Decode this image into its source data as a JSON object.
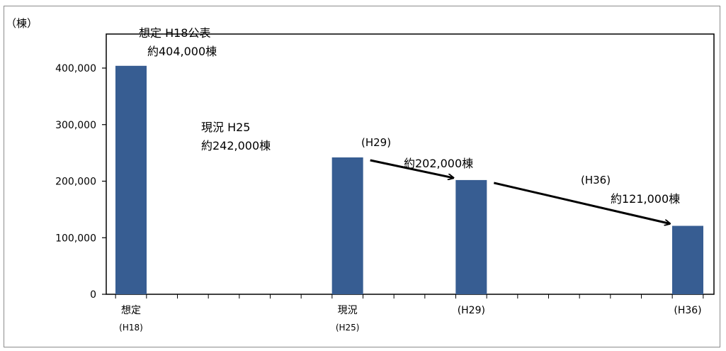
{
  "chart_data": {
    "type": "bar",
    "ylabel": "（棟）",
    "ylim": [
      0,
      400000
    ],
    "yticks": [
      0,
      100000,
      200000,
      300000,
      400000
    ],
    "ytick_labels": [
      "0",
      "100,000",
      "200,000",
      "300,000",
      "400,000"
    ],
    "x_year_range": [
      "H18",
      "H36"
    ],
    "categories": [
      {
        "top": "想定",
        "bottom": "(H18)",
        "year": 18
      },
      {
        "top": "現況",
        "bottom": "(H25)",
        "year": 25
      },
      {
        "top": "(H29)",
        "bottom": "",
        "year": 29
      },
      {
        "top": "(H36)",
        "bottom": "",
        "year": 36
      }
    ],
    "values": [
      404000,
      242000,
      202000,
      121000
    ],
    "bar_color": "#375D92",
    "grid": false,
    "annotations": [
      {
        "lines": [
          "想定  H18公表",
          "約404,000棟"
        ]
      },
      {
        "lines": [
          "現況  H25",
          "約242,000棟"
        ]
      },
      {
        "lines": [
          "(H29)"
        ]
      },
      {
        "lines": [
          "約202,000棟"
        ]
      },
      {
        "lines": [
          "(H36)"
        ]
      },
      {
        "lines": [
          "約121,000棟"
        ]
      }
    ],
    "arrows": [
      {
        "from_bar": 1,
        "to_bar": 2
      },
      {
        "from_bar": 2,
        "to_bar": 3
      }
    ]
  }
}
